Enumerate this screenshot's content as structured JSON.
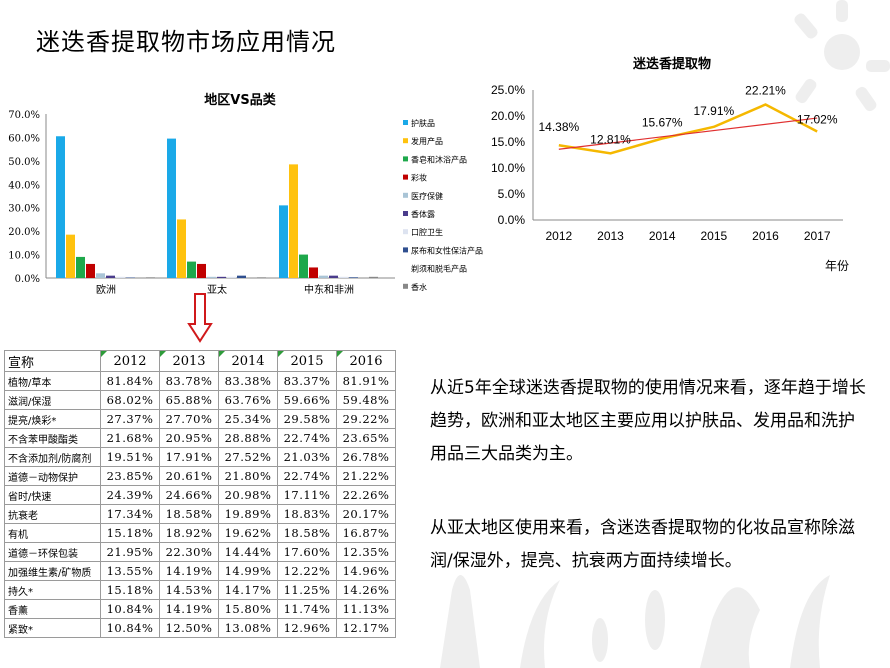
{
  "title": "迷迭香提取物市场应用情况",
  "bar_chart": {
    "title": "地区VS品类",
    "y_ticks": [
      "70.0%",
      "60.0%",
      "50.0%",
      "40.0%",
      "30.0%",
      "20.0%",
      "10.0%",
      "0.0%"
    ],
    "categories": [
      "欧洲",
      "亚太",
      "中东和非洲"
    ],
    "legend": [
      "护肤品",
      "发用产品",
      "香皂和沐浴产品",
      "彩妆",
      "医疗保健",
      "香体露",
      "口腔卫生",
      "尿布和女性保洁产品",
      "剃须和脱毛产品",
      "香水"
    ],
    "colors": [
      "#1aa9e8",
      "#ffc20e",
      "#1ea84b",
      "#c00000",
      "#a9c4d6",
      "#4a3c8c",
      "#dde3f0",
      "#2f4f8f",
      "#ffffff",
      "#888888"
    ]
  },
  "line_chart": {
    "title": "迷迭香提取物",
    "x_label": "年份",
    "y_ticks": [
      "25.0%",
      "20.0%",
      "15.0%",
      "10.0%",
      "5.0%",
      "0.0%"
    ],
    "years": [
      "2012",
      "2013",
      "2014",
      "2015",
      "2016",
      "2017"
    ],
    "value_labels": [
      "14.38%",
      "12.81%",
      "15.67%",
      "17.91%",
      "22.21%",
      "17.02%"
    ]
  },
  "chart_data": [
    {
      "type": "bar",
      "title": "地区VS品类",
      "categories": [
        "欧洲",
        "亚太",
        "中东和非洲"
      ],
      "ylim": [
        0,
        70
      ],
      "legend_position": "right",
      "series": [
        {
          "name": "护肤品",
          "values": [
            60.5,
            59.5,
            31
          ]
        },
        {
          "name": "发用产品",
          "values": [
            18.5,
            25,
            48.5
          ]
        },
        {
          "name": "香皂和沐浴产品",
          "values": [
            9,
            7,
            10
          ]
        },
        {
          "name": "彩妆",
          "values": [
            6,
            6,
            4.5
          ]
        },
        {
          "name": "医疗保健",
          "values": [
            2,
            0.5,
            1
          ]
        },
        {
          "name": "香体露",
          "values": [
            1,
            0.5,
            1
          ]
        },
        {
          "name": "口腔卫生",
          "values": [
            0.5,
            0.5,
            0.5
          ]
        },
        {
          "name": "尿布和女性保洁产品",
          "values": [
            0.2,
            1,
            0.3
          ]
        },
        {
          "name": "剃须和脱毛产品",
          "values": [
            0,
            0,
            0
          ]
        },
        {
          "name": "香水",
          "values": [
            0.3,
            0.3,
            0.5
          ]
        }
      ]
    },
    {
      "type": "line",
      "title": "迷迭香提取物",
      "xlabel": "年份",
      "x": [
        2012,
        2013,
        2014,
        2015,
        2016,
        2017
      ],
      "ylim": [
        0,
        25
      ],
      "series": [
        {
          "values": [
            14.38,
            12.81,
            15.67,
            17.91,
            22.21,
            17.02
          ],
          "color": "#f5b800"
        }
      ],
      "trendline": {
        "color": "#e03030",
        "start": 13.6,
        "end": 19.6
      }
    }
  ],
  "table": {
    "headers": [
      "宣称",
      "2012",
      "2013",
      "2014",
      "2015",
      "2016"
    ],
    "rows": [
      {
        "label": "植物/草本",
        "values": [
          "81.84%",
          "83.78%",
          "83.38%",
          "83.37%",
          "81.91%"
        ]
      },
      {
        "label": "滋润/保湿",
        "values": [
          "68.02%",
          "65.88%",
          "63.76%",
          "59.66%",
          "59.48%"
        ]
      },
      {
        "label": "提亮/焕彩*",
        "values": [
          "27.37%",
          "27.70%",
          "25.34%",
          "29.58%",
          "29.22%"
        ]
      },
      {
        "label": "不含苯甲酸酯类",
        "values": [
          "21.68%",
          "20.95%",
          "28.88%",
          "22.74%",
          "23.65%"
        ]
      },
      {
        "label": "不含添加剂/防腐剂",
        "values": [
          "19.51%",
          "17.91%",
          "27.52%",
          "21.03%",
          "26.78%"
        ]
      },
      {
        "label": "道德－动物保护",
        "values": [
          "23.85%",
          "20.61%",
          "21.80%",
          "22.74%",
          "21.22%"
        ]
      },
      {
        "label": "省时/快速",
        "values": [
          "24.39%",
          "24.66%",
          "20.98%",
          "17.11%",
          "22.26%"
        ]
      },
      {
        "label": "抗衰老",
        "values": [
          "17.34%",
          "18.58%",
          "19.89%",
          "18.83%",
          "20.17%"
        ]
      },
      {
        "label": "有机",
        "values": [
          "15.18%",
          "18.92%",
          "19.62%",
          "18.58%",
          "16.87%"
        ]
      },
      {
        "label": "道德－环保包装",
        "values": [
          "21.95%",
          "22.30%",
          "14.44%",
          "17.60%",
          "12.35%"
        ]
      },
      {
        "label": "加强维生素/矿物质",
        "values": [
          "13.55%",
          "14.19%",
          "14.99%",
          "12.22%",
          "14.96%"
        ]
      },
      {
        "label": "持久*",
        "values": [
          "15.18%",
          "14.53%",
          "14.17%",
          "11.25%",
          "14.26%"
        ]
      },
      {
        "label": "香薰",
        "values": [
          "10.84%",
          "14.19%",
          "15.80%",
          "11.74%",
          "11.13%"
        ]
      },
      {
        "label": "紧致*",
        "values": [
          "10.84%",
          "12.50%",
          "13.08%",
          "12.96%",
          "12.17%"
        ]
      }
    ],
    "underlined_rows": [
      2,
      7
    ]
  },
  "summary": [
    "从近5年全球迷迭香提取物的使用情况来看，逐年趋于增长趋势，欧洲和亚太地区主要应用以护肤品、发用品和洗护用品三大品类为主。",
    "从亚太地区使用来看，含迷迭香提取物的化妆品宣称除滋润/保湿外，提亮、抗衰两方面持续增长。"
  ]
}
